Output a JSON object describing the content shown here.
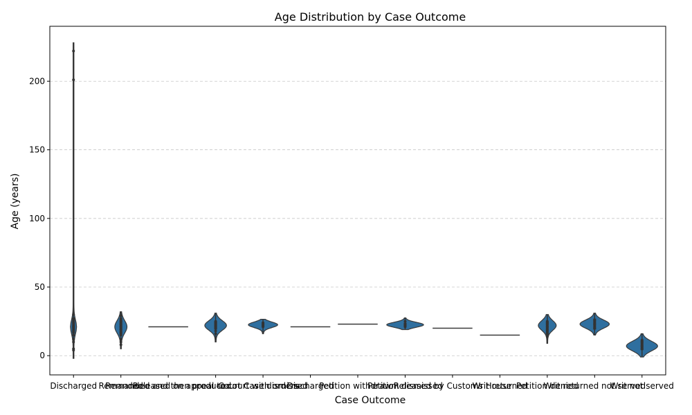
{
  "chart_data": {
    "type": "violin",
    "title": "Age Distribution by Case Outcome",
    "xlabel": "Case Outcome",
    "ylabel": "Age (years)",
    "ylim": [
      -14,
      240
    ],
    "yticks": [
      0,
      50,
      100,
      150,
      200
    ],
    "grid": "y-dashed",
    "violin_color": "#2f6f9f",
    "categories": [
      {
        "name": "Discharged",
        "kde": {
          "lo": -2,
          "hi": 228,
          "peak": 21,
          "sd": 5,
          "width": 0.14
        },
        "iqr": [
          16,
          27
        ],
        "median": 21,
        "points": [
          222,
          201,
          30,
          27,
          24,
          21,
          18,
          15,
          12,
          10,
          5,
          4
        ]
      },
      {
        "name": "Remanded",
        "kde": {
          "lo": 5,
          "hi": 32,
          "peak": 21,
          "sd": 4.5,
          "width": 0.3
        },
        "iqr": [
          15,
          27
        ],
        "median": 21,
        "points": [
          29,
          27,
          25,
          23,
          21,
          19,
          17,
          15,
          12,
          10,
          8
        ]
      },
      {
        "name": "Remanded and then produced",
        "kde": null,
        "line": 21,
        "points": []
      },
      {
        "name": "Released on appeal to court with orders",
        "kde": {
          "lo": 10,
          "hi": 31,
          "peak": 22,
          "sd": 3.5,
          "width": 0.55
        },
        "iqr": [
          19,
          25
        ],
        "median": 22,
        "points": [
          25,
          24,
          23,
          22,
          21,
          20,
          18,
          16
        ]
      },
      {
        "name": "Court Case dismissed",
        "kde": {
          "lo": 16,
          "hi": 26.5,
          "peak": 22.5,
          "sd": 2,
          "width": 0.75
        },
        "iqr": [
          21,
          24
        ],
        "median": 22.5,
        "points": [
          24,
          22.5,
          21
        ]
      },
      {
        "name": "Discharged",
        "kde": null,
        "line": 21,
        "points": []
      },
      {
        "name": "Petition withdrawn",
        "kde": null,
        "line": 23,
        "points": []
      },
      {
        "name": "Petition dismissed",
        "kde": {
          "lo": 19,
          "hi": 27.5,
          "peak": 22.5,
          "sd": 1.8,
          "width": 0.95
        },
        "iqr": [
          21,
          24
        ],
        "median": 22.5,
        "points": [
          25,
          23,
          22,
          21
        ]
      },
      {
        "name": "Released by Customs House",
        "kde": null,
        "line": 20,
        "points": []
      },
      {
        "name": "Writ returned",
        "kde": null,
        "line": 15,
        "points": []
      },
      {
        "name": "Petition denied",
        "kde": {
          "lo": 9,
          "hi": 30,
          "peak": 22,
          "sd": 3.5,
          "width": 0.45
        },
        "iqr": [
          15,
          25
        ],
        "median": 22,
        "points": [
          25,
          24,
          23,
          21,
          19,
          16,
          14
        ]
      },
      {
        "name": "Writ returned not served",
        "kde": {
          "lo": 15,
          "hi": 31,
          "peak": 23,
          "sd": 3,
          "width": 0.75
        },
        "iqr": [
          19,
          27
        ],
        "median": 23,
        "points": [
          26,
          23,
          20
        ]
      },
      {
        "name": "Writ not served",
        "kde": {
          "lo": -1,
          "hi": 16,
          "peak": 7,
          "sd": 3.5,
          "width": 0.8
        },
        "iqr": [
          4,
          12
        ],
        "median": 7,
        "points": [
          10,
          7,
          5
        ]
      }
    ]
  }
}
